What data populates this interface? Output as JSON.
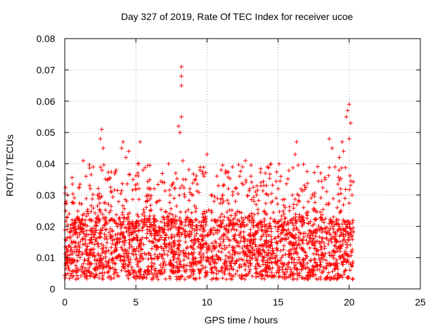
{
  "chart_data": {
    "type": "scatter",
    "title": "Day 327 of 2019, Rate Of TEC Index for receiver ucoe",
    "xlabel": "GPS time / hours",
    "ylabel": "ROTI / TECUs",
    "xlim": [
      0,
      25
    ],
    "ylim": [
      0,
      0.08
    ],
    "x_ticks": [
      "0",
      "5",
      "10",
      "15",
      "20",
      "25"
    ],
    "y_ticks": [
      "0",
      "0.01",
      "0.02",
      "0.03",
      "0.04",
      "0.05",
      "0.06",
      "0.07",
      "0.08"
    ],
    "grid": true,
    "marker": "+",
    "marker_color": "#ff0000",
    "series": [
      {
        "points": [
          [
            0.1,
            0.028
          ],
          [
            0.2,
            0.03
          ],
          [
            0.3,
            0.024
          ],
          [
            0.5,
            0.012
          ],
          [
            0.8,
            0.018
          ],
          [
            1.0,
            0.022
          ],
          [
            1.3,
            0.041
          ],
          [
            1.5,
            0.036
          ],
          [
            1.8,
            0.032
          ],
          [
            2.0,
            0.039
          ],
          [
            2.3,
            0.03
          ],
          [
            2.5,
            0.048
          ],
          [
            2.6,
            0.051
          ],
          [
            2.7,
            0.045
          ],
          [
            3.0,
            0.035
          ],
          [
            3.3,
            0.031
          ],
          [
            3.6,
            0.038
          ],
          [
            4.0,
            0.045
          ],
          [
            4.1,
            0.047
          ],
          [
            4.3,
            0.042
          ],
          [
            4.5,
            0.044
          ],
          [
            4.8,
            0.035
          ],
          [
            5.0,
            0.032
          ],
          [
            5.2,
            0.04
          ],
          [
            5.3,
            0.047
          ],
          [
            5.5,
            0.038
          ],
          [
            5.8,
            0.03
          ],
          [
            6.0,
            0.025
          ],
          [
            6.3,
            0.032
          ],
          [
            6.5,
            0.028
          ],
          [
            7.0,
            0.034
          ],
          [
            7.3,
            0.04
          ],
          [
            7.5,
            0.033
          ],
          [
            7.8,
            0.037
          ],
          [
            8.0,
            0.052
          ],
          [
            8.1,
            0.05
          ],
          [
            8.2,
            0.055
          ],
          [
            8.2,
            0.071
          ],
          [
            8.2,
            0.068
          ],
          [
            8.2,
            0.065
          ],
          [
            8.3,
            0.041
          ],
          [
            8.5,
            0.035
          ],
          [
            8.8,
            0.032
          ],
          [
            9.0,
            0.03
          ],
          [
            9.2,
            0.035
          ],
          [
            9.5,
            0.038
          ],
          [
            9.8,
            0.036
          ],
          [
            10.0,
            0.043
          ],
          [
            10.3,
            0.03
          ],
          [
            10.5,
            0.028
          ],
          [
            10.8,
            0.033
          ],
          [
            11.0,
            0.038
          ],
          [
            11.3,
            0.037
          ],
          [
            11.5,
            0.032
          ],
          [
            11.8,
            0.03
          ],
          [
            12.0,
            0.028
          ],
          [
            12.3,
            0.036
          ],
          [
            12.5,
            0.039
          ],
          [
            12.7,
            0.041
          ],
          [
            13.0,
            0.032
          ],
          [
            13.3,
            0.028
          ],
          [
            13.5,
            0.03
          ],
          [
            13.8,
            0.034
          ],
          [
            14.0,
            0.033
          ],
          [
            14.3,
            0.03
          ],
          [
            14.6,
            0.028
          ],
          [
            15.0,
            0.032
          ],
          [
            15.2,
            0.036
          ],
          [
            15.5,
            0.026
          ],
          [
            15.8,
            0.025
          ],
          [
            16.0,
            0.03
          ],
          [
            16.2,
            0.043
          ],
          [
            16.3,
            0.047
          ],
          [
            16.5,
            0.028
          ],
          [
            16.8,
            0.026
          ],
          [
            17.0,
            0.024
          ],
          [
            17.5,
            0.025
          ],
          [
            18.0,
            0.037
          ],
          [
            18.3,
            0.035
          ],
          [
            18.6,
            0.048
          ],
          [
            18.8,
            0.045
          ],
          [
            19.0,
            0.039
          ],
          [
            19.3,
            0.042
          ],
          [
            19.5,
            0.047
          ],
          [
            19.6,
            0.044
          ],
          [
            19.8,
            0.055
          ],
          [
            19.9,
            0.057
          ],
          [
            20.0,
            0.059
          ],
          [
            20.1,
            0.053
          ],
          [
            20.0,
            0.048
          ],
          [
            20.2,
            0.03
          ]
        ]
      }
    ],
    "density_band": {
      "x_range": [
        0,
        20.3
      ],
      "core_min": 0.003,
      "core_max": 0.022
    }
  }
}
